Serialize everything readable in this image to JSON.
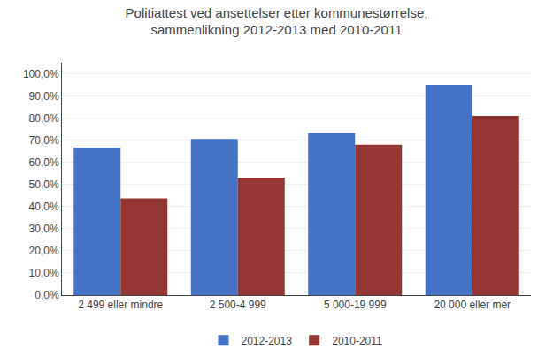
{
  "chart_data": {
    "type": "bar",
    "title": "Politiattest ved ansettelser etter kommunestørrelse,\nsammenlikning 2012-2013 med 2010-2011",
    "categories": [
      "2 499 eller mindre",
      "2 500-4 999",
      "5 000-19 999",
      "20 000 eller mer"
    ],
    "series": [
      {
        "name": "2012-2013",
        "color": "#4472C4",
        "values": [
          0.667,
          0.706,
          0.733,
          0.95
        ]
      },
      {
        "name": "2010-2011",
        "color": "#943634",
        "values": [
          0.437,
          0.53,
          0.68,
          0.81
        ]
      }
    ],
    "ylim": [
      0.0,
      1.05
    ],
    "yticks": [
      {
        "value": 0.0,
        "label": "0,0%"
      },
      {
        "value": 0.1,
        "label": "10,0%"
      },
      {
        "value": 0.2,
        "label": "20,0%"
      },
      {
        "value": 0.3,
        "label": "30,0%"
      },
      {
        "value": 0.4,
        "label": "40,0%"
      },
      {
        "value": 0.5,
        "label": "50,0%"
      },
      {
        "value": 0.6,
        "label": "60,0%"
      },
      {
        "value": 0.7,
        "label": "70,0%"
      },
      {
        "value": 0.8,
        "label": "80,0%"
      },
      {
        "value": 0.9,
        "label": "90,0%"
      },
      {
        "value": 1.0,
        "label": "100,0%"
      }
    ],
    "grid": true,
    "legend": "bottom"
  }
}
